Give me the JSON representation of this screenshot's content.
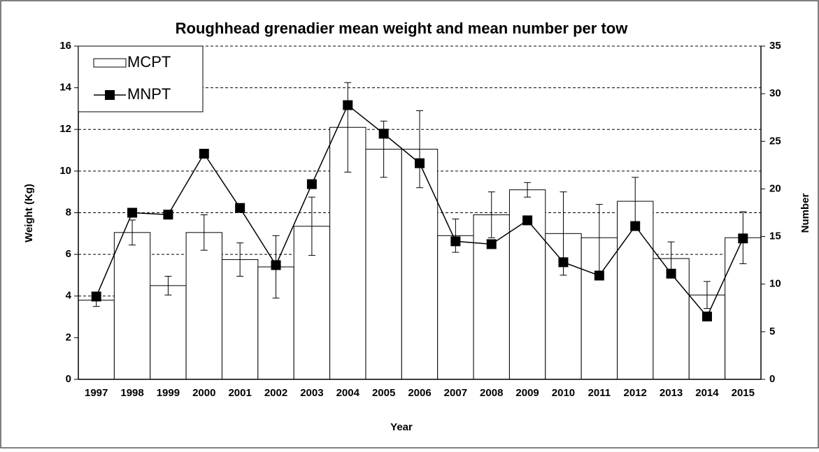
{
  "chart_data": {
    "type": "bar_line",
    "title": "Roughhead grenadier mean weight and mean number per tow",
    "x_label": "Year",
    "y_label": "Weight (Kg)",
    "y2_label": "Number",
    "categories": [
      "1997",
      "1998",
      "1999",
      "2000",
      "2001",
      "2002",
      "2003",
      "2004",
      "2005",
      "2006",
      "2007",
      "2008",
      "2009",
      "2010",
      "2011",
      "2012",
      "2013",
      "2014",
      "2015"
    ],
    "series": [
      {
        "name": "MCPT",
        "type": "bar",
        "color": "#ffffff",
        "axis": "y",
        "values": [
          3.8,
          7.05,
          4.5,
          7.05,
          5.75,
          5.4,
          7.35,
          12.1,
          11.05,
          11.05,
          6.9,
          7.9,
          9.1,
          7.0,
          6.8,
          8.55,
          5.8,
          4.05,
          6.8
        ],
        "errors": [
          0.3,
          0.6,
          0.45,
          0.85,
          0.8,
          1.5,
          1.4,
          2.15,
          1.35,
          1.85,
          0.8,
          1.1,
          0.35,
          2.0,
          1.6,
          1.15,
          0.8,
          0.65,
          1.25
        ]
      },
      {
        "name": "MNPT",
        "type": "line",
        "color": "#000000",
        "axis": "y2",
        "values": [
          8.7,
          17.5,
          17.3,
          23.7,
          18.0,
          12.0,
          20.5,
          28.8,
          25.8,
          22.7,
          14.5,
          14.2,
          16.7,
          12.3,
          10.9,
          16.1,
          11.1,
          6.6,
          14.8
        ]
      }
    ],
    "ylim": [
      0,
      16
    ],
    "yticks": [
      0,
      2,
      4,
      6,
      8,
      10,
      12,
      14,
      16
    ],
    "y2lim": [
      0,
      35
    ],
    "y2ticks": [
      0,
      5,
      10,
      15,
      20,
      25,
      30,
      35
    ],
    "grid": true,
    "legend": "top-left"
  }
}
